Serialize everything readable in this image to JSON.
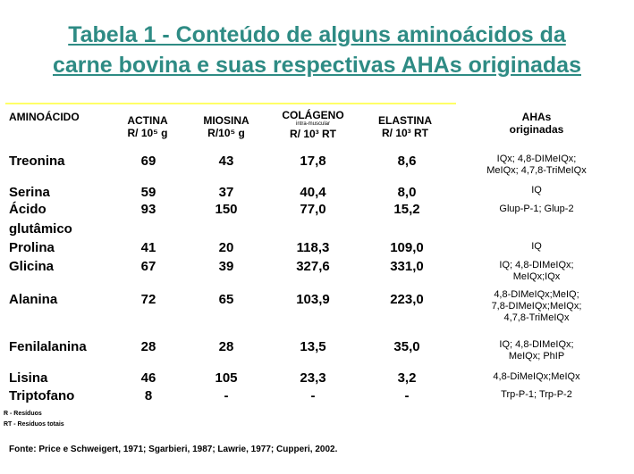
{
  "title_line1": "Tabela 1 - Conteúdo de alguns aminoácidos da",
  "title_line2": "carne bovina e suas respectivas AHAs originadas",
  "headers": {
    "aminoacido": "AMINOÁCIDO",
    "actina_1": "ACTINA",
    "actina_2": "R/ 10⁵ g",
    "miosina_1": "MIOSINA",
    "miosina_2": "R/10⁵ g",
    "colageno_1": "COLÁGENO",
    "colageno_sub": "intra-muscular",
    "colageno_2": "R/ 10³ RT",
    "elastina_1": "ELASTINA",
    "elastina_2": "R/ 10³ RT",
    "ahas_1": "AHAs",
    "ahas_2": "originadas"
  },
  "rows": [
    {
      "name": "Treonina",
      "actina": "69",
      "miosina": "43",
      "colageno": "17,8",
      "elastina": "8,6"
    },
    {
      "name": "Serina",
      "actina": "59",
      "miosina": "37",
      "colageno": "40,4",
      "elastina": "8,0"
    },
    {
      "name": "Ácido",
      "name2": "glutâmico",
      "actina": "93",
      "miosina": "150",
      "colageno": "77,0",
      "elastina": "15,2"
    },
    {
      "name": "Prolina",
      "actina": "41",
      "miosina": "20",
      "colageno": "118,3",
      "elastina": "109,0"
    },
    {
      "name": "Glicina",
      "actina": "67",
      "miosina": "39",
      "colageno": "327,6",
      "elastina": "331,0"
    },
    {
      "name": "Alanina",
      "actina": "72",
      "miosina": "65",
      "colageno": "103,9",
      "elastina": "223,0"
    },
    {
      "name": "Fenilalanina",
      "actina": "28",
      "miosina": "28",
      "colageno": "13,5",
      "elastina": "35,0"
    },
    {
      "name": "Lisina",
      "actina": "46",
      "miosina": "105",
      "colageno": "23,3",
      "elastina": "3,2"
    },
    {
      "name": "Triptofano",
      "actina": "8",
      "miosina": "-",
      "colageno": "-",
      "elastina": "-"
    }
  ],
  "ahas": [
    {
      "l1": "IQx; 4,8-DIMeIQx;",
      "l2": "MeIQx; 4,7,8-TriMeIQx"
    },
    {
      "l1": "IQ"
    },
    {
      "l1": "Glup-P-1; Glup-2"
    },
    {
      "l1": "IQ"
    },
    {
      "l1": "IQ; 4,8-DIMeIQx;",
      "l2": "MeIQx;IQx"
    },
    {
      "l1": "4,8-DIMeIQx;MeIQ;",
      "l2": "7,8-DIMeIQx;MeIQx;",
      "l3": "4,7,8-TriMeIQx"
    },
    {
      "l1": "IQ; 4,8-DIMeIQx;",
      "l2": "MeIQx; PhIP"
    },
    {
      "l1": "4,8-DiMeIQx;MeIQx"
    },
    {
      "l1": "Trp-P-1; Trp-P-2"
    }
  ],
  "footnote1": "R - Resíduos",
  "footnote2": "RT - Resíduos totais",
  "source": "Fonte: Price e Schweigert, 1971; Sgarbieri, 1987; Lawrie, 1977; Cupperi, 2002."
}
